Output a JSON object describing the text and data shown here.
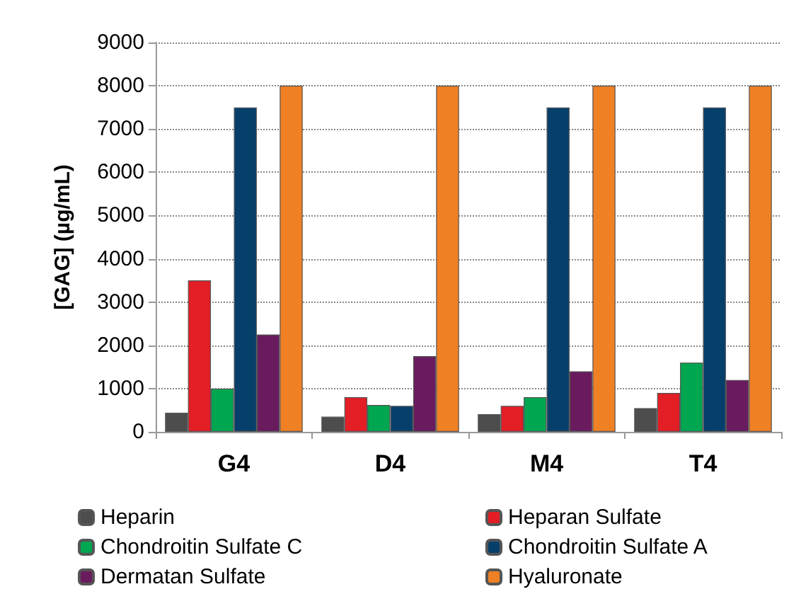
{
  "chart_data": {
    "type": "bar",
    "ylabel": "[GAG] (µg/mL)",
    "categories": [
      "G4",
      "D4",
      "M4",
      "T4"
    ],
    "series": [
      {
        "name": "Heparin",
        "color": "#4d4d4d",
        "values": [
          440,
          350,
          410,
          550
        ]
      },
      {
        "name": "Heparan Sulfate",
        "color": "#e31e25",
        "values": [
          3500,
          800,
          600,
          900
        ]
      },
      {
        "name": "Chondroitin Sulfate C",
        "color": "#00a650",
        "values": [
          1000,
          620,
          800,
          1600
        ]
      },
      {
        "name": "Chondroitin Sulfate A",
        "color": "#073f6b",
        "values": [
          7500,
          600,
          7500,
          7500
        ]
      },
      {
        "name": "Dermatan Sulfate",
        "color": "#6a1b5e",
        "values": [
          2250,
          1750,
          1400,
          1200
        ]
      },
      {
        "name": "Hyaluronate",
        "color": "#f08024",
        "values": [
          8000,
          8000,
          8000,
          8000
        ]
      }
    ],
    "ylim": [
      0,
      9000
    ],
    "yticks": [
      0,
      1000,
      2000,
      3000,
      4000,
      5000,
      6000,
      7000,
      8000,
      9000
    ],
    "grid": "y",
    "legend": "bottom"
  }
}
